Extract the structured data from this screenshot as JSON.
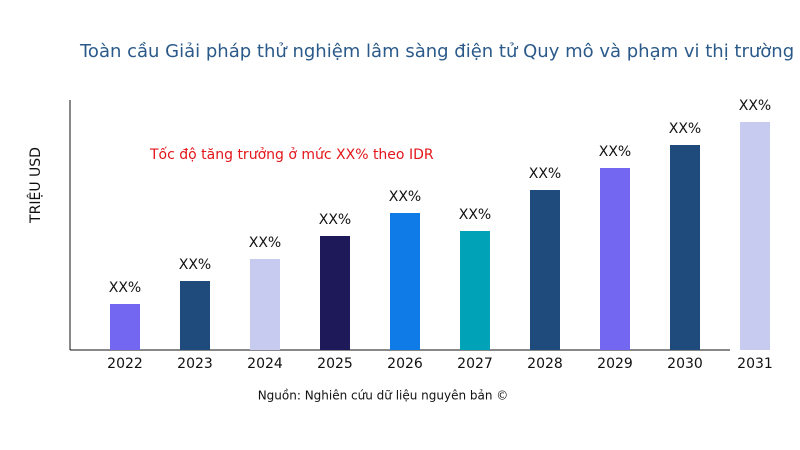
{
  "chart_data": {
    "type": "bar",
    "title": "Toàn cầu Giải pháp thử nghiệm lâm sàng điện tử Quy mô và phạm vi thị trường",
    "y_label": "TRIỆU USD",
    "annotation": "Tốc độ tăng trưởng ở mức XX% theo IDR",
    "source": "Nguồn: Nghiên cứu dữ liệu nguyên bản ©",
    "categories": [
      "2022",
      "2023",
      "2024",
      "2025",
      "2026",
      "2027",
      "2028",
      "2029",
      "2030",
      "2031"
    ],
    "values": [
      46,
      69,
      91,
      114,
      137,
      119,
      160,
      182,
      205,
      228
    ],
    "value_labels": [
      "XX%",
      "XX%",
      "XX%",
      "XX%",
      "XX%",
      "XX%",
      "XX%",
      "XX%",
      "XX%",
      "XX%"
    ],
    "colors": [
      "#7366f0",
      "#1f4a7c",
      "#c8cbf0",
      "#1e1a5a",
      "#0f7be6",
      "#00a2b8",
      "#1f4a7c",
      "#7366f0",
      "#1f4a7c",
      "#c8cbf0"
    ],
    "ylim": [
      0,
      250
    ]
  }
}
